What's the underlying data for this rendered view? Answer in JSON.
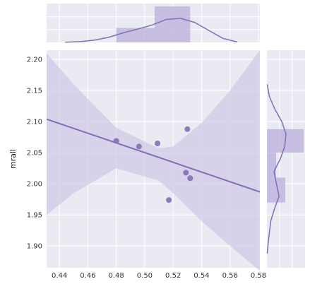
{
  "chart_data": {
    "type": "scatter",
    "xlabel": "",
    "ylabel": "mrall",
    "xlim": [
      0.431,
      0.581
    ],
    "ylim": [
      1.865,
      2.215
    ],
    "x_ticks": [
      "0.44",
      "0.46",
      "0.48",
      "0.50",
      "0.52",
      "0.54",
      "0.56",
      "0.58"
    ],
    "y_ticks": [
      "1.90",
      "1.95",
      "2.00",
      "2.05",
      "2.10",
      "2.15",
      "2.20"
    ],
    "points": [
      {
        "x": 0.48,
        "y": 2.069
      },
      {
        "x": 0.496,
        "y": 2.06
      },
      {
        "x": 0.509,
        "y": 2.065
      },
      {
        "x": 0.517,
        "y": 1.974
      },
      {
        "x": 0.529,
        "y": 2.018
      },
      {
        "x": 0.53,
        "y": 2.088
      },
      {
        "x": 0.532,
        "y": 2.009
      }
    ],
    "regression": {
      "x": [
        0.431,
        0.581
      ],
      "y": [
        2.104,
        1.987
      ]
    },
    "ci_band": {
      "x": [
        0.431,
        0.45,
        0.48,
        0.51,
        0.52,
        0.54,
        0.56,
        0.581
      ],
      "upper": [
        2.21,
        2.16,
        2.09,
        2.057,
        2.06,
        2.098,
        2.15,
        2.215
      ],
      "lower": [
        1.95,
        1.985,
        2.025,
        2.005,
        1.985,
        1.94,
        1.9,
        1.86
      ]
    },
    "top_histogram": [
      {
        "x0": 0.48,
        "x1": 0.507,
        "value": 2
      },
      {
        "x0": 0.507,
        "x1": 0.532,
        "value": 5
      }
    ],
    "top_kde": {
      "x": [
        0.444,
        0.455,
        0.465,
        0.475,
        0.485,
        0.495,
        0.505,
        0.515,
        0.525,
        0.535,
        0.545,
        0.555,
        0.565
      ],
      "density": [
        0.005,
        0.02,
        0.06,
        0.13,
        0.24,
        0.33,
        0.43,
        0.57,
        0.6,
        0.5,
        0.3,
        0.1,
        0.01
      ]
    },
    "right_histogram": [
      {
        "y0": 1.97,
        "y1": 2.01,
        "value": 2
      },
      {
        "y0": 2.01,
        "y1": 2.05,
        "value": 1
      },
      {
        "y0": 2.05,
        "y1": 2.088,
        "value": 4
      }
    ],
    "right_kde": {
      "y": [
        1.888,
        1.91,
        1.94,
        1.96,
        1.98,
        2.0,
        2.02,
        2.04,
        2.06,
        2.08,
        2.1,
        2.12,
        2.14,
        2.16
      ],
      "density": [
        0.01,
        0.05,
        0.12,
        0.24,
        0.38,
        0.3,
        0.22,
        0.42,
        0.56,
        0.6,
        0.47,
        0.25,
        0.08,
        0.01
      ]
    },
    "colors": {
      "accent": "#7f70b5",
      "fill": "#b9aedb",
      "band": "#c9c0e3",
      "plot_bg": "#eaeaf2",
      "grid": "#ffffff"
    }
  }
}
